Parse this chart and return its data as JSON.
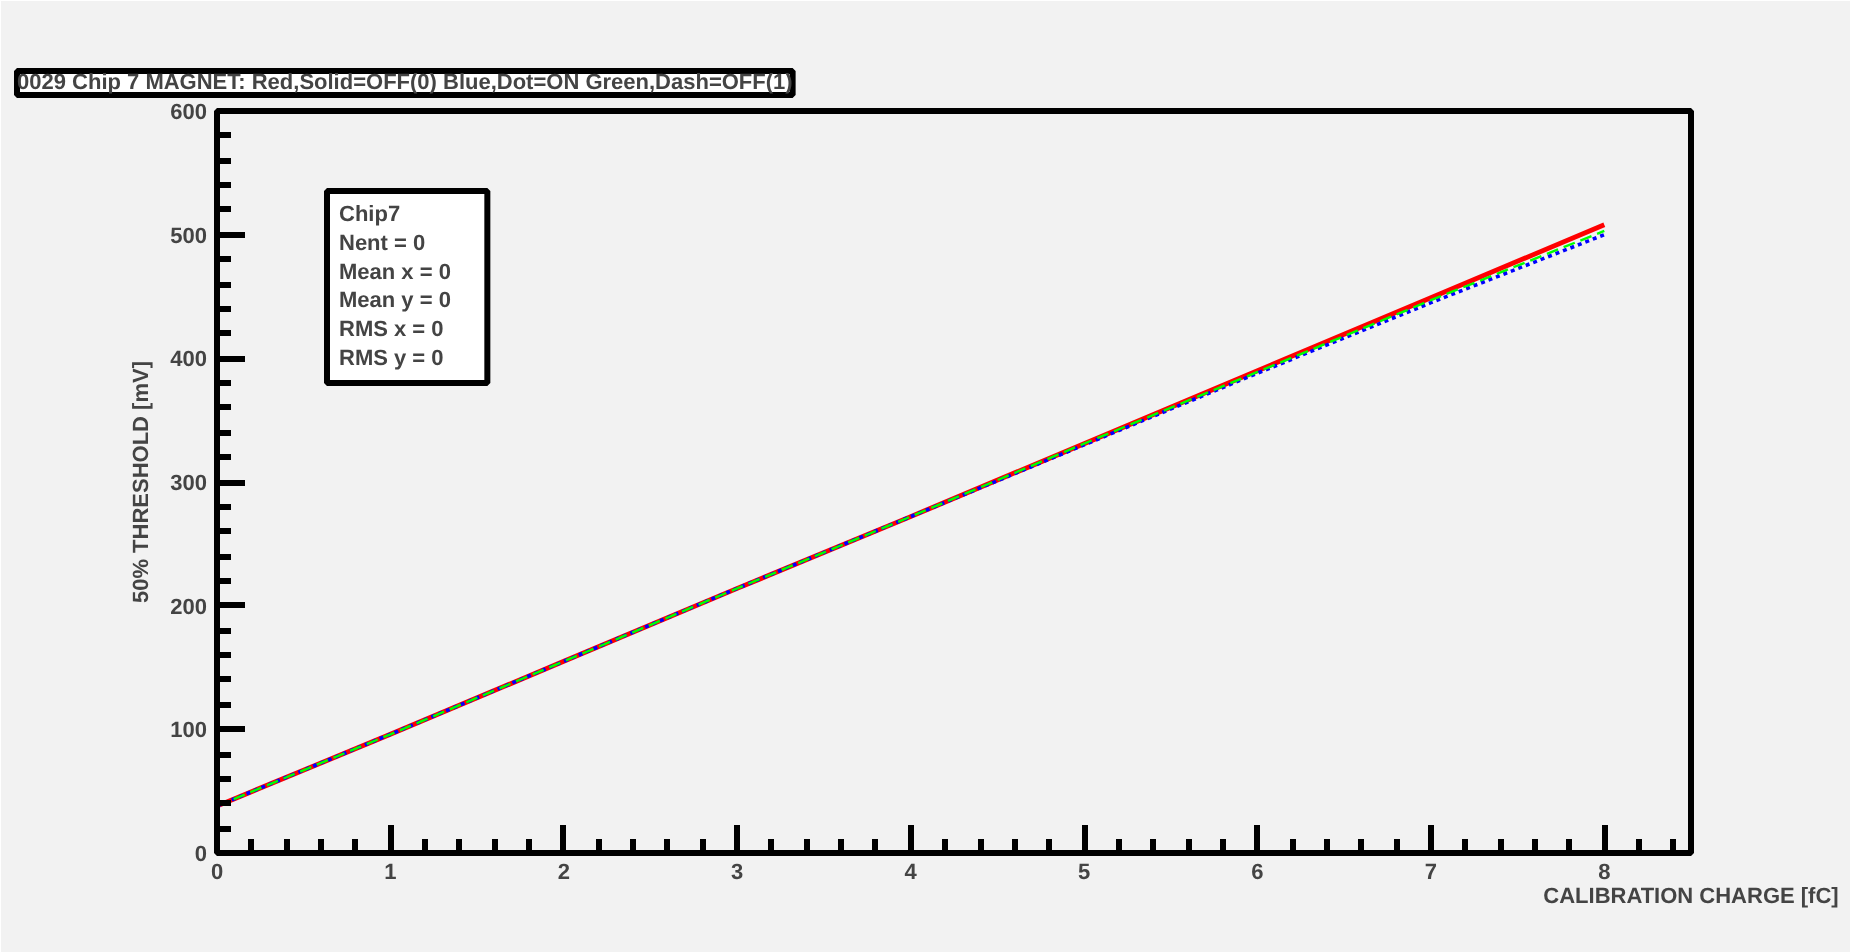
{
  "chart_data": {
    "type": "line",
    "title": "0029 Chip 7 MAGNET: Red,Solid=OFF(0) Blue,Dot=ON Green,Dash=OFF(1)",
    "xlabel": "CALIBRATION CHARGE [fC]",
    "ylabel": "50% THRESHOLD [mV]",
    "x": [
      0,
      1,
      2,
      3,
      4,
      5,
      6,
      7,
      8
    ],
    "series": [
      {
        "color": "#ff0000",
        "line_style": "solid",
        "values": [
          38,
          96,
          155,
          214,
          272,
          331,
          390,
          449,
          508
        ]
      },
      {
        "color": "#0000ff",
        "line_style": "dotted",
        "values": [
          38,
          96,
          155,
          214,
          272,
          330,
          388,
          445,
          500
        ]
      },
      {
        "color": "#00ff00",
        "line_style": "dashed",
        "values": [
          38,
          96,
          155,
          214,
          272,
          331,
          389,
          447,
          503
        ]
      }
    ],
    "xlim": [
      0,
      8.5
    ],
    "ylim": [
      0,
      600
    ],
    "xticks": [
      0,
      1,
      2,
      3,
      4,
      5,
      6,
      7,
      8
    ],
    "yticks": [
      0,
      100,
      200,
      300,
      400,
      500,
      600
    ],
    "marker": "none",
    "annotations": [
      "Chip7",
      "Nent = 0",
      "Mean x =     0",
      "Mean y =     0",
      "RMS x  =     0",
      "RMS y  =     0"
    ]
  }
}
